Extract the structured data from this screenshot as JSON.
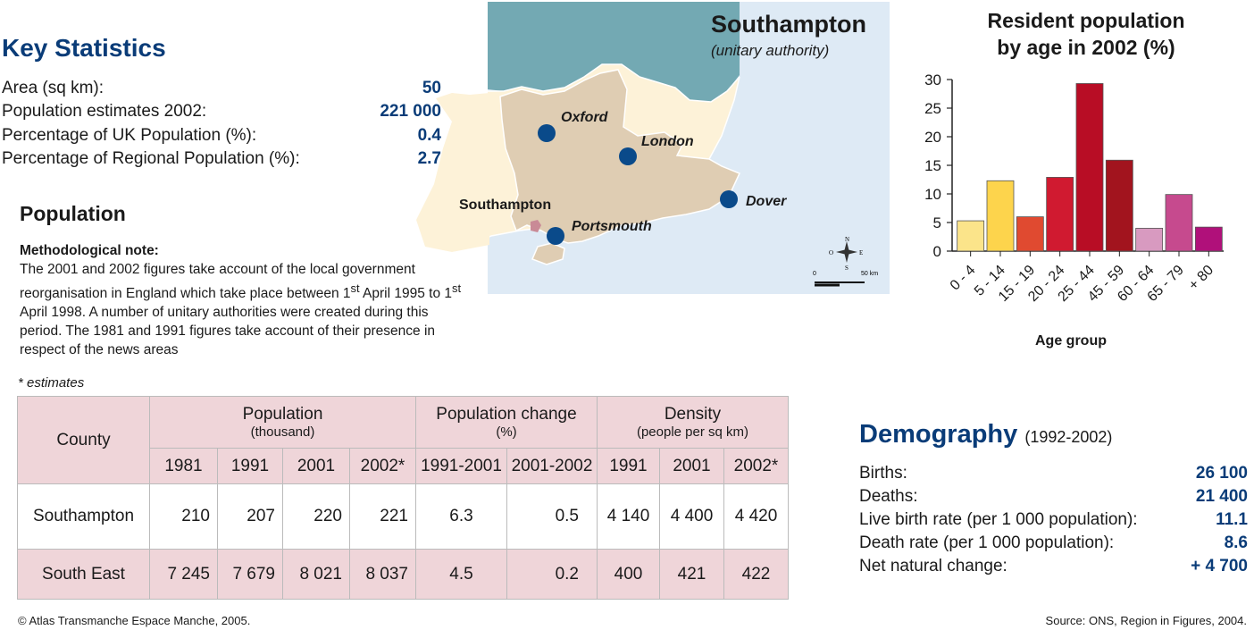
{
  "key_statistics": {
    "title": "Key Statistics",
    "rows": [
      {
        "label": "Area (sq km):",
        "value": "50"
      },
      {
        "label": "Population estimates 2002:",
        "value": "221 000"
      },
      {
        "label": "Percentage of UK Population (%):",
        "value": "0.4"
      },
      {
        "label": "Percentage of Regional Population (%):",
        "value": "2.7"
      }
    ]
  },
  "population": {
    "title": "Population",
    "note_heading": "Methodological note:",
    "note_part1": "The 2001 and 2002 figures take account of the local government reorganisation in England which take place between 1",
    "note_sup1": "st",
    "note_part2": " April 1995 to 1",
    "note_sup2": "st",
    "note_part3": " April 1998. A number of unitary authorities were created during this period. The 1981 and 1991 figures take account of their presence in respect of the news areas",
    "estimates_note": "* estimates"
  },
  "table": {
    "county_header": "County",
    "groups": [
      {
        "title": "Population",
        "sub": "(thousand)"
      },
      {
        "title": "Population change",
        "sub": "(%)"
      },
      {
        "title": "Density",
        "sub": "(people per sq km)"
      }
    ],
    "subheaders": [
      "1981",
      "1991",
      "2001",
      "2002*",
      "1991-2001",
      "2001-2002",
      "1991",
      "2001",
      "2002*"
    ],
    "rows": [
      {
        "county": "Southampton",
        "values": [
          "210",
          "207",
          "220",
          "221",
          "6.3",
          "0.5",
          "4 140",
          "4 400",
          "4 420"
        ]
      },
      {
        "county": "South East",
        "values": [
          "7 245",
          "7 679",
          "8 021",
          "8 037",
          "4.5",
          "0.2",
          "400",
          "421",
          "422"
        ]
      }
    ]
  },
  "map": {
    "title": "Southampton",
    "subtitle": "(unitary authority)",
    "cities": [
      "Oxford",
      "London",
      "Dover",
      "Southampton",
      "Portsmouth"
    ],
    "compass": {
      "n": "N",
      "s": "S",
      "e": "E",
      "o": "O"
    },
    "scale": {
      "start": "0",
      "end": "50 km"
    },
    "colors": {
      "sea": "#deeaf5",
      "land_other": "#73a9b3",
      "region": "#dfcdb3",
      "rest": "#fdf2d8",
      "city": "#0a4a8a",
      "highlight": "#c98a96"
    }
  },
  "chart_data": {
    "type": "bar",
    "title": "Resident population by age in 2002 (%)",
    "title_line1": "Resident population",
    "title_line2": "by age in 2002 (%)",
    "xlabel": "Age group",
    "ylabel": "",
    "ylim": [
      0,
      30
    ],
    "yticks": [
      0,
      5,
      10,
      15,
      20,
      25,
      30
    ],
    "categories": [
      "0 - 4",
      "5 - 14",
      "15 - 19",
      "20 - 24",
      "25 - 44",
      "45 - 59",
      "60 - 64",
      "65 - 79",
      "+ 80"
    ],
    "values": [
      5.3,
      12.3,
      6.0,
      12.9,
      29.3,
      15.9,
      4.0,
      9.9,
      4.2
    ],
    "colors": [
      "#fbe48a",
      "#fdd44c",
      "#e04a30",
      "#d01a30",
      "#b80d25",
      "#a2141e",
      "#d89ac0",
      "#c64a8e",
      "#b0107a"
    ],
    "grid": false,
    "legend": "none"
  },
  "demography": {
    "title": "Demography",
    "period": "(1992-2002)",
    "rows": [
      {
        "label": "Births:",
        "value": "26 100"
      },
      {
        "label": "Deaths:",
        "value": "21 400"
      },
      {
        "label": "Live birth rate (per 1 000 population):",
        "value": "11.1"
      },
      {
        "label": "Death rate (per 1 000 population):",
        "value": "8.6"
      },
      {
        "label": "Net natural change:",
        "value": "+ 4 700"
      }
    ]
  },
  "footer": {
    "copyright": "© Atlas Transmanche Espace Manche, 2005.",
    "source": "Source: ONS, Region in Figures, 2004."
  }
}
